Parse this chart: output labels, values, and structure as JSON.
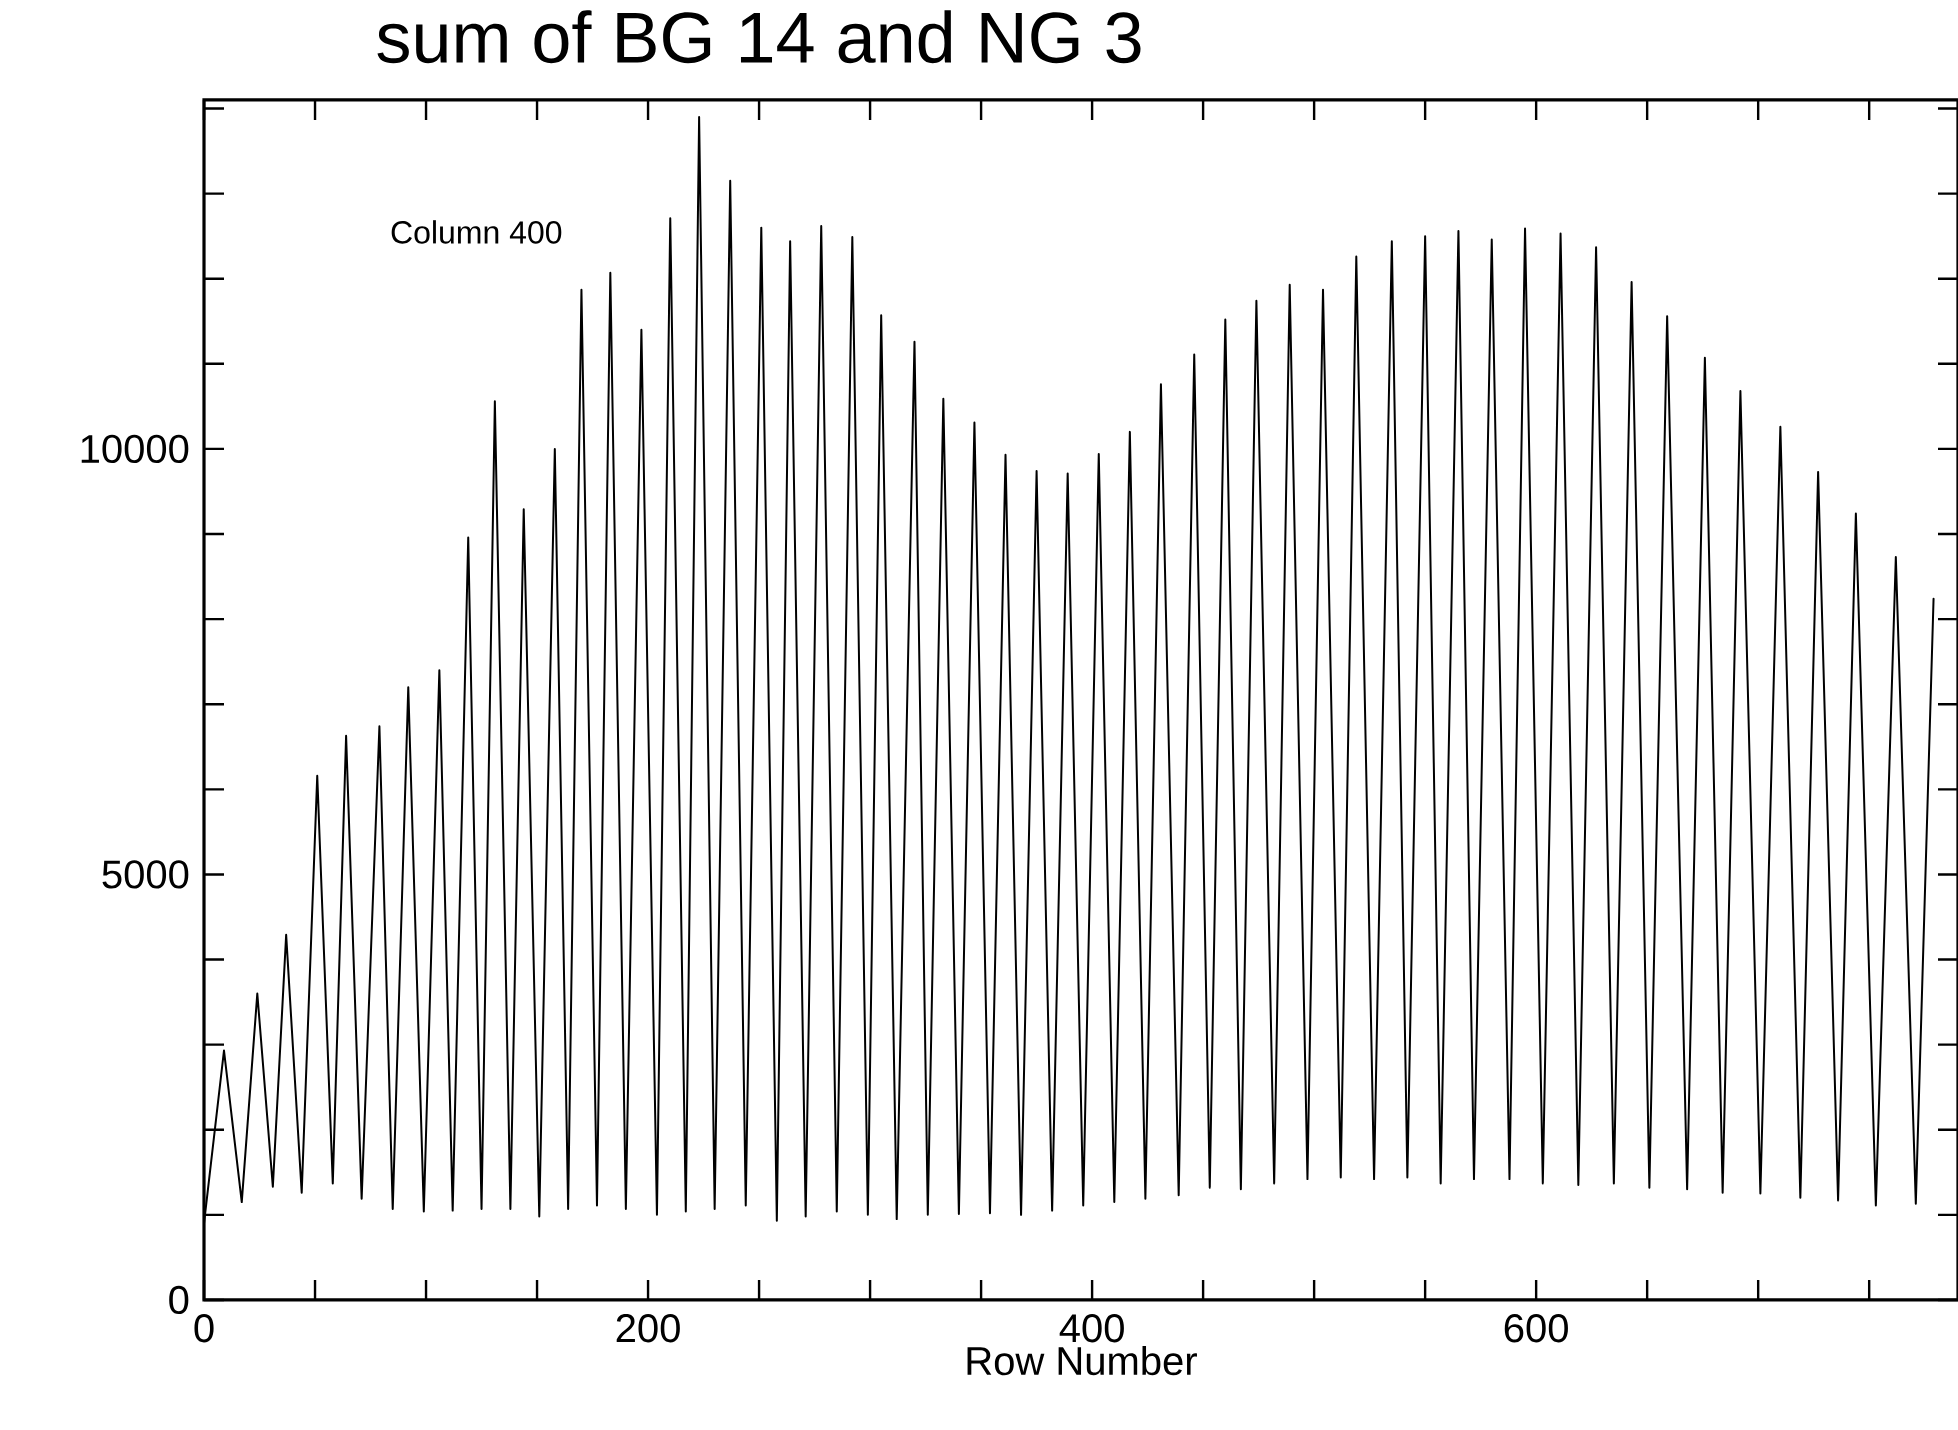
{
  "chart_data": {
    "type": "line",
    "title": "sum of BG 14 and NG 3",
    "subtitle": "Column 400",
    "xlabel": "Row Number",
    "xlim": [
      0,
      790
    ],
    "ylim": [
      0,
      14100
    ],
    "xticks": [
      0,
      {
        "value": 50,
        "label": null
      },
      {
        "value": 100,
        "label": null
      },
      {
        "value": 150,
        "label": null
      },
      200,
      {
        "value": 250,
        "label": null
      },
      {
        "value": 300,
        "label": null
      },
      {
        "value": 350,
        "label": null
      },
      400,
      {
        "value": 450,
        "label": null
      },
      {
        "value": 500,
        "label": null
      },
      {
        "value": 550,
        "label": null
      },
      600,
      {
        "value": 650,
        "label": null
      },
      {
        "value": 700,
        "label": null
      },
      {
        "value": 750,
        "label": null
      }
    ],
    "yticks": [
      0,
      {
        "value": 1000,
        "label": null
      },
      {
        "value": 2000,
        "label": null
      },
      {
        "value": 3000,
        "label": null
      },
      {
        "value": 4000,
        "label": null
      },
      5000,
      {
        "value": 6000,
        "label": null
      },
      {
        "value": 7000,
        "label": null
      },
      {
        "value": 8000,
        "label": null
      },
      {
        "value": 9000,
        "label": null
      },
      10000,
      {
        "value": 11000,
        "label": null
      },
      {
        "value": 12000,
        "label": null
      },
      {
        "value": 13000,
        "label": null
      },
      {
        "value": 14000,
        "label": null
      }
    ],
    "series": [
      {
        "color": "#000000",
        "x": [
          0,
          9,
          17,
          24,
          31,
          37,
          44,
          51,
          58,
          64,
          71,
          79,
          85,
          92,
          99,
          106,
          112,
          119,
          125,
          131,
          138,
          144,
          151,
          158,
          164,
          170,
          177,
          183,
          190,
          197,
          204,
          210,
          217,
          223,
          230,
          237,
          244,
          251,
          258,
          264,
          271,
          278,
          285,
          292,
          299,
          305,
          312,
          320,
          326,
          333,
          340,
          347,
          354,
          361,
          368,
          375,
          382,
          389,
          396,
          403,
          410,
          417,
          424,
          431,
          439,
          446,
          453,
          460,
          467,
          474,
          482,
          489,
          497,
          504,
          512,
          519,
          527,
          535,
          542,
          550,
          557,
          565,
          572,
          580,
          588,
          595,
          603,
          611,
          619,
          627,
          635,
          643,
          651,
          659,
          668,
          676,
          684,
          692,
          701,
          710,
          719,
          727,
          736,
          744,
          753,
          762,
          771,
          779
        ],
        "values": [
          900,
          2930,
          1150,
          3600,
          1330,
          4290,
          1260,
          6160,
          1370,
          6630,
          1190,
          6740,
          1070,
          7200,
          1040,
          7400,
          1050,
          8960,
          1070,
          10560,
          1070,
          9290,
          980,
          10000,
          1070,
          11870,
          1110,
          12070,
          1070,
          11400,
          1000,
          12710,
          1040,
          13900,
          1070,
          13150,
          1110,
          12600,
          930,
          12440,
          980,
          12620,
          1040,
          12490,
          1000,
          11570,
          950,
          11260,
          1000,
          10590,
          1010,
          10310,
          1020,
          9930,
          1000,
          9740,
          1050,
          9710,
          1110,
          9940,
          1150,
          10200,
          1190,
          10760,
          1230,
          11110,
          1320,
          11520,
          1300,
          11740,
          1370,
          11930,
          1420,
          11870,
          1440,
          12260,
          1420,
          12440,
          1440,
          12500,
          1370,
          12560,
          1420,
          12460,
          1420,
          12590,
          1370,
          12530,
          1350,
          12370,
          1370,
          11960,
          1320,
          11560,
          1300,
          11070,
          1260,
          10680,
          1250,
          10260,
          1200,
          9730,
          1170,
          9240,
          1110,
          8730,
          1130,
          8240
        ]
      }
    ]
  }
}
